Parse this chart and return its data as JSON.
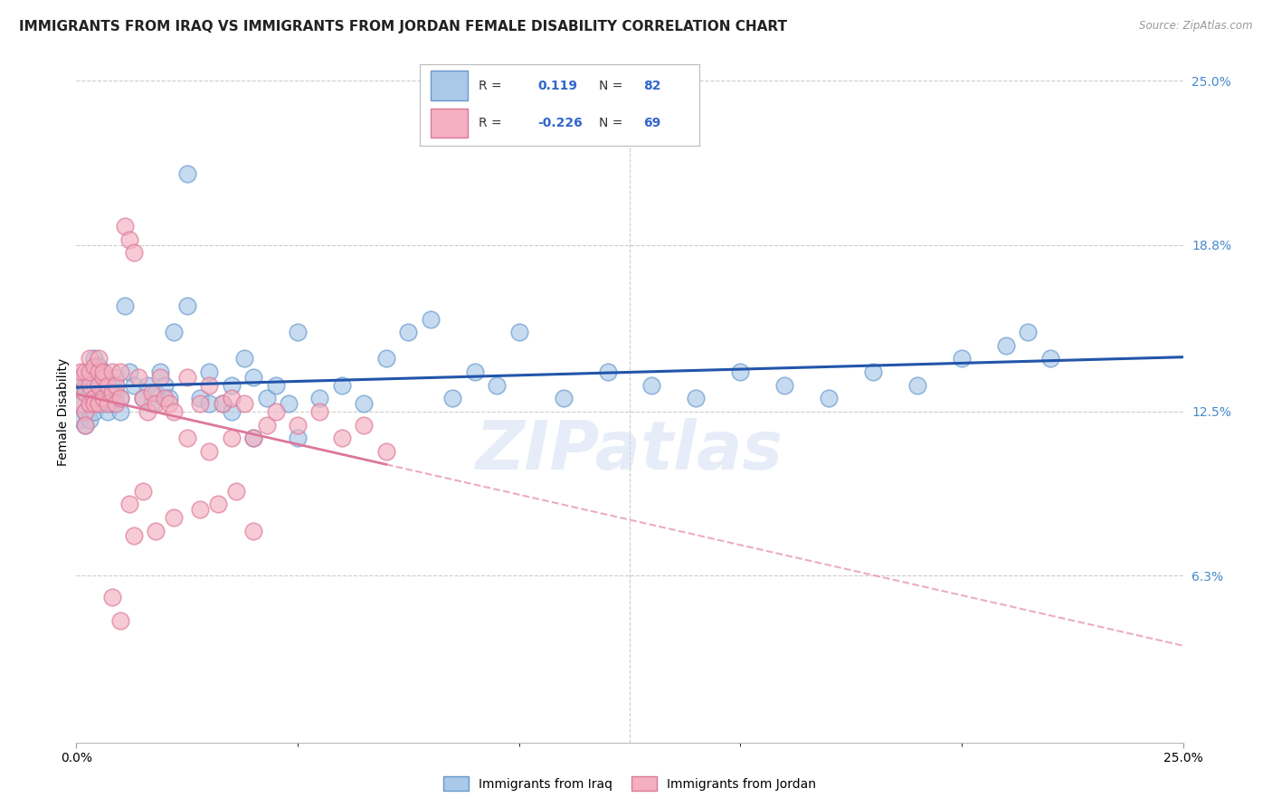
{
  "title": "IMMIGRANTS FROM IRAQ VS IMMIGRANTS FROM JORDAN FEMALE DISABILITY CORRELATION CHART",
  "source": "Source: ZipAtlas.com",
  "ylabel": "Female Disability",
  "xlim": [
    0.0,
    0.25
  ],
  "ylim": [
    0.0,
    0.25
  ],
  "ytick_right_labels": [
    "25.0%",
    "18.8%",
    "12.5%",
    "6.3%"
  ],
  "ytick_right_values": [
    0.25,
    0.188,
    0.125,
    0.063
  ],
  "xtick_positions": [
    0.0,
    0.25
  ],
  "xtick_labels": [
    "0.0%",
    "25.0%"
  ],
  "series": [
    {
      "name": "Immigrants from Iraq",
      "R": 0.119,
      "N": 82,
      "color": "#aac8e8",
      "edge_color": "#6699cc",
      "line_color": "#2255aa",
      "line_style": "solid"
    },
    {
      "name": "Immigrants from Jordan",
      "R": -0.226,
      "N": 69,
      "color": "#f4b0c0",
      "edge_color": "#dd7799",
      "line_color": "#dd7799",
      "line_style": "solid"
    }
  ],
  "grid_color": "#cccccc",
  "background_color": "#ffffff",
  "watermark": "ZIPatlas",
  "watermark_color": "#c8d8f0",
  "legend_R_color": "#3366cc",
  "legend_box_color": "#3366cc",
  "title_fontsize": 11,
  "axis_label_fontsize": 10,
  "tick_fontsize": 10,
  "right_tick_color": "#4488cc",
  "iraq_x": [
    0.001,
    0.001,
    0.001,
    0.002,
    0.002,
    0.002,
    0.002,
    0.003,
    0.003,
    0.003,
    0.003,
    0.003,
    0.004,
    0.004,
    0.004,
    0.004,
    0.005,
    0.005,
    0.005,
    0.005,
    0.006,
    0.006,
    0.006,
    0.007,
    0.007,
    0.007,
    0.008,
    0.008,
    0.009,
    0.009,
    0.01,
    0.01,
    0.011,
    0.012,
    0.013,
    0.015,
    0.016,
    0.017,
    0.018,
    0.019,
    0.02,
    0.021,
    0.022,
    0.025,
    0.028,
    0.03,
    0.033,
    0.035,
    0.038,
    0.04,
    0.043,
    0.045,
    0.048,
    0.05,
    0.055,
    0.06,
    0.065,
    0.07,
    0.075,
    0.08,
    0.085,
    0.09,
    0.095,
    0.1,
    0.11,
    0.12,
    0.13,
    0.14,
    0.15,
    0.16,
    0.17,
    0.18,
    0.19,
    0.2,
    0.21,
    0.215,
    0.22,
    0.025,
    0.03,
    0.035,
    0.04,
    0.05
  ],
  "iraq_y": [
    0.133,
    0.128,
    0.122,
    0.135,
    0.125,
    0.132,
    0.12,
    0.138,
    0.128,
    0.131,
    0.14,
    0.122,
    0.135,
    0.13,
    0.125,
    0.145,
    0.13,
    0.135,
    0.128,
    0.142,
    0.135,
    0.128,
    0.14,
    0.133,
    0.125,
    0.13,
    0.135,
    0.128,
    0.132,
    0.138,
    0.13,
    0.125,
    0.165,
    0.14,
    0.135,
    0.13,
    0.135,
    0.128,
    0.132,
    0.14,
    0.135,
    0.13,
    0.155,
    0.165,
    0.13,
    0.14,
    0.128,
    0.135,
    0.145,
    0.138,
    0.13,
    0.135,
    0.128,
    0.155,
    0.13,
    0.135,
    0.128,
    0.145,
    0.155,
    0.16,
    0.13,
    0.14,
    0.135,
    0.155,
    0.13,
    0.14,
    0.135,
    0.13,
    0.14,
    0.135,
    0.13,
    0.14,
    0.135,
    0.145,
    0.15,
    0.155,
    0.145,
    0.215,
    0.128,
    0.125,
    0.115,
    0.115
  ],
  "jordan_x": [
    0.001,
    0.001,
    0.001,
    0.002,
    0.002,
    0.002,
    0.002,
    0.003,
    0.003,
    0.003,
    0.003,
    0.004,
    0.004,
    0.004,
    0.005,
    0.005,
    0.005,
    0.005,
    0.006,
    0.006,
    0.006,
    0.007,
    0.007,
    0.008,
    0.008,
    0.009,
    0.009,
    0.01,
    0.01,
    0.011,
    0.012,
    0.013,
    0.014,
    0.015,
    0.016,
    0.017,
    0.018,
    0.019,
    0.02,
    0.021,
    0.022,
    0.025,
    0.028,
    0.03,
    0.033,
    0.035,
    0.038,
    0.04,
    0.043,
    0.045,
    0.05,
    0.055,
    0.06,
    0.065,
    0.07,
    0.025,
    0.03,
    0.035,
    0.04,
    0.012,
    0.015,
    0.008,
    0.01,
    0.013,
    0.018,
    0.022,
    0.028,
    0.032,
    0.036
  ],
  "jordan_y": [
    0.138,
    0.128,
    0.14,
    0.132,
    0.125,
    0.14,
    0.12,
    0.135,
    0.145,
    0.128,
    0.14,
    0.13,
    0.142,
    0.128,
    0.135,
    0.14,
    0.128,
    0.145,
    0.138,
    0.13,
    0.14,
    0.135,
    0.128,
    0.14,
    0.132,
    0.135,
    0.128,
    0.14,
    0.13,
    0.195,
    0.19,
    0.185,
    0.138,
    0.13,
    0.125,
    0.132,
    0.128,
    0.138,
    0.13,
    0.128,
    0.125,
    0.138,
    0.128,
    0.135,
    0.128,
    0.13,
    0.128,
    0.115,
    0.12,
    0.125,
    0.12,
    0.125,
    0.115,
    0.12,
    0.11,
    0.115,
    0.11,
    0.115,
    0.08,
    0.09,
    0.095,
    0.055,
    0.046,
    0.078,
    0.08,
    0.085,
    0.088,
    0.09,
    0.095
  ]
}
